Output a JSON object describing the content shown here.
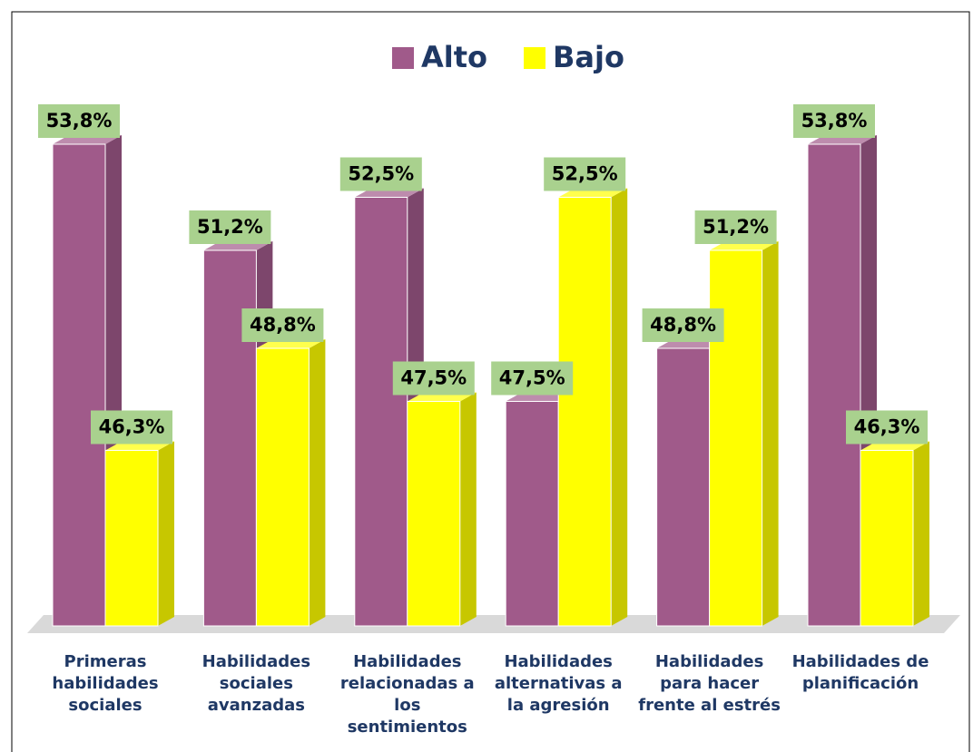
{
  "chart_data": {
    "type": "bar3d",
    "categories": [
      "Primeras habilidades sociales",
      "Habilidades sociales avanzadas",
      "Habilidades relacionadas a los sentimientos",
      "Habilidades alternativas a la agresión",
      "Habilidades para hacer frente al estrés",
      "Habilidades de planificación"
    ],
    "series": [
      {
        "name": "Alto",
        "color": "#a05a8a",
        "values": [
          53.8,
          51.2,
          52.5,
          47.5,
          48.8,
          53.8
        ],
        "value_labels": [
          "53,8%",
          "51,2%",
          "52,5%",
          "47,5%",
          "48,8%",
          "53,8%"
        ]
      },
      {
        "name": "Bajo",
        "color": "#ffff00",
        "values": [
          46.3,
          48.8,
          47.5,
          52.5,
          51.2,
          46.3
        ],
        "value_labels": [
          "46,3%",
          "48,8%",
          "47,5%",
          "52,5%",
          "51,2%",
          "46,3%"
        ]
      }
    ],
    "ylim": [
      42,
      55
    ],
    "legend": "top"
  }
}
